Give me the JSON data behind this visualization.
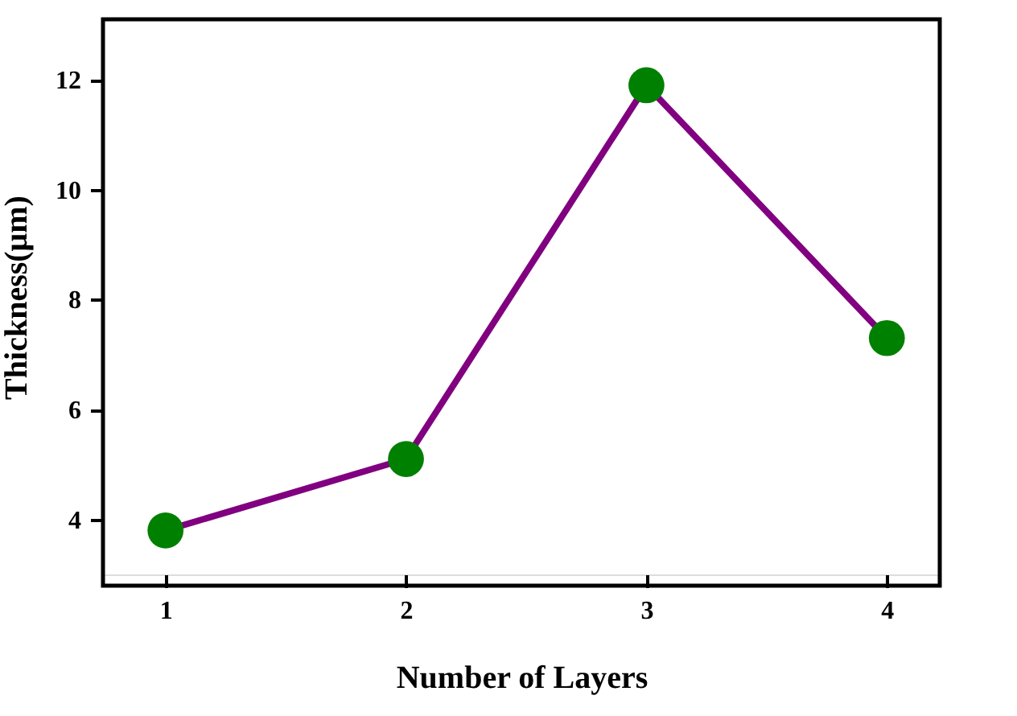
{
  "chart_data": {
    "type": "line",
    "xlabel": "Number of Layers",
    "ylabel": "Thickness(μm)",
    "x": [
      1,
      2,
      3,
      4
    ],
    "series": [
      {
        "color": "#800080",
        "values": [
          3.8,
          5.1,
          11.9,
          7.3
        ],
        "colors": [
          "#008000",
          "#008000",
          "#008000",
          "#008000"
        ]
      }
    ],
    "xlim": [
      0.74,
      4.22
    ],
    "xticks": [
      1,
      2,
      3,
      4
    ],
    "ylim": [
      3.0,
      13.1
    ],
    "yticks": [
      4,
      6,
      8,
      10,
      12
    ],
    "grid": false,
    "marker": "circle",
    "line_style": "solid"
  }
}
